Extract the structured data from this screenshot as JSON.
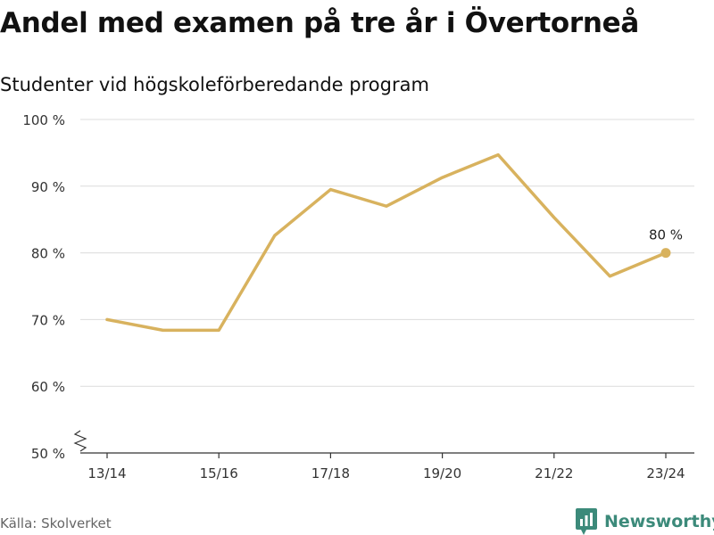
{
  "title": "Andel med examen på tre år i Övertorneå",
  "subtitle": "Studenter vid högskoleförberedande program",
  "source": "Källa: Skolverket",
  "brand": {
    "name": "Newsworthy",
    "color": "#3c8a7a",
    "icon": "bar-chart-icon"
  },
  "chart_data": {
    "type": "line",
    "title": "Andel med examen på tre år i Övertorneå",
    "subtitle": "Studenter vid högskoleförberedande program",
    "xlabel": "",
    "ylabel": "",
    "x": [
      "13/14",
      "14/15",
      "15/16",
      "16/17",
      "17/18",
      "18/19",
      "19/20",
      "20/21",
      "21/22",
      "22/23",
      "23/24"
    ],
    "x_tick_labels": [
      "13/14",
      "15/16",
      "17/18",
      "19/20",
      "21/22",
      "23/24"
    ],
    "series": [
      {
        "values": [
          70.0,
          68.4,
          68.4,
          82.6,
          89.5,
          87.0,
          91.3,
          94.7,
          85.3,
          76.5,
          80.0
        ],
        "color": "#d8b25e"
      }
    ],
    "ylim": [
      50,
      100
    ],
    "y_ticks": [
      50,
      60,
      70,
      80,
      90,
      100
    ],
    "y_tick_labels": [
      "50 %",
      "60 %",
      "70 %",
      "80 %",
      "90 %",
      "100 %"
    ],
    "y_axis_break": true,
    "grid": true,
    "annotations": [
      {
        "x": "23/24",
        "y": 80,
        "text": "80 %"
      }
    ]
  }
}
